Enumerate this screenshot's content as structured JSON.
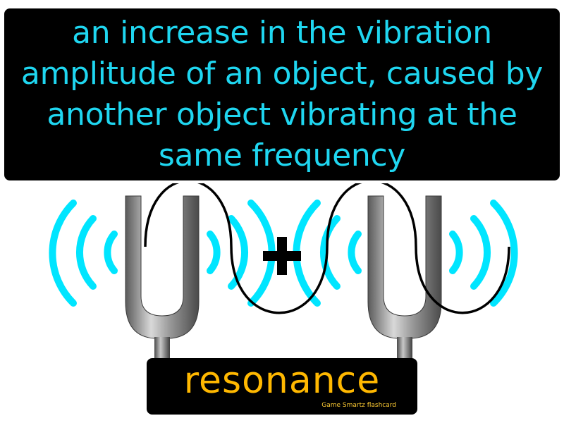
{
  "definition": {
    "text": "an increase in the vibration amplitude of an object, caused by another object vibrating at the same frequency"
  },
  "term": {
    "word": "resonance",
    "credit": "Game Smartz flashcard"
  },
  "illustration": {
    "left_icon": "tuning-fork-icon",
    "right_icon": "tuning-fork-icon",
    "operator_icon": "plus-icon",
    "wave_icon": "sine-wave-icon",
    "vibration_icon": "vibration-arcs-icon"
  },
  "colors": {
    "background": "#ffffff",
    "box": "#000000",
    "definition_text": "#1fd6f0",
    "term_text": "#ffb800",
    "vibration_arcs": "#00e5ff",
    "fork_metal": "#8a8a8a"
  }
}
